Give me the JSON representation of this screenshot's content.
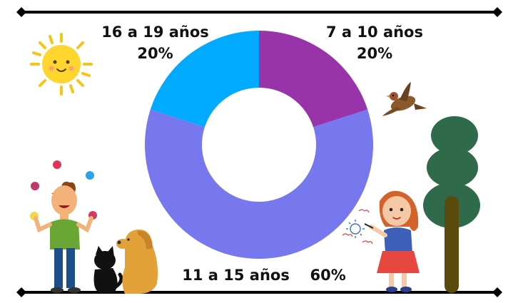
{
  "chart_data": {
    "type": "pie",
    "donut": true,
    "slices": [
      {
        "label": "7 a 10 años",
        "value": 20,
        "value_label": "20%",
        "color": "#9933AA"
      },
      {
        "label": "11 a 15 años",
        "value": 60,
        "value_label": "60%",
        "color": "#7777EE"
      },
      {
        "label": "16 a 19 años",
        "value": 20,
        "value_label": "20%",
        "color": "#00AAFF"
      }
    ],
    "start": "top",
    "direction": "clockwise"
  },
  "labels": {
    "top_right": {
      "name": "7 a 10 años",
      "pct": "20%"
    },
    "top_left": {
      "name": "16 a 19 años",
      "pct": "20%"
    },
    "bottom": {
      "name": "11 a 15 años",
      "pct": "60%"
    }
  },
  "decor": [
    "sun-illustration",
    "bird-illustration",
    "tree-illustration",
    "juggling-boy-illustration",
    "cat-illustration",
    "dog-illustration",
    "drawing-girl-illustration"
  ]
}
